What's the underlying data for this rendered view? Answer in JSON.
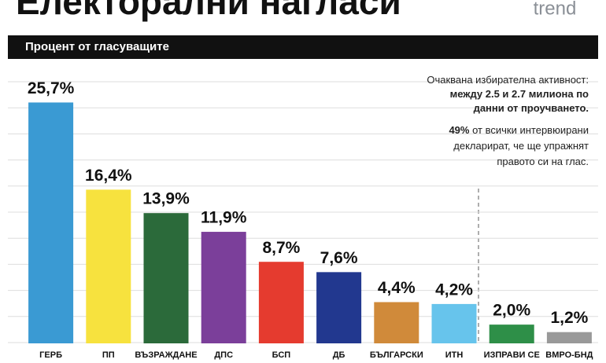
{
  "chart_data": {
    "type": "bar",
    "title": "Електорални нагласи",
    "subtitle": "Процент от гласуващите",
    "logo": "trend",
    "annotations": [
      {
        "text": "Очаквана избирателна активност:",
        "bold": false
      },
      {
        "text": "между 2.5 и 2.7 милиона по",
        "bold": true
      },
      {
        "text": "данни от проучването.",
        "bold": true
      },
      {
        "text": "49%",
        "bold": true,
        "rest": "от всички интервюирани"
      },
      {
        "text": "декларират, че ще упражнят",
        "bold": false
      },
      {
        "text": "правото си на глас.",
        "bold": false
      }
    ],
    "categories": [
      "ГЕРБ",
      "ПП",
      "ВЪЗРАЖДАНЕ",
      "ДПС",
      "БСП",
      "ДБ",
      "БЪЛГАРСКИ",
      "ИТН",
      "ИЗПРАВИ СЕ",
      "ВМРО-БНД"
    ],
    "values": [
      25.7,
      16.4,
      13.9,
      11.9,
      8.7,
      7.6,
      4.4,
      4.2,
      2.0,
      1.2
    ],
    "value_labels": [
      "25,7%",
      "16,4%",
      "13,9%",
      "11,9%",
      "8,7%",
      "7,6%",
      "4,4%",
      "4,2%",
      "2,0%",
      "1,2%"
    ],
    "colors": [
      "#3a9ad3",
      "#f7e23e",
      "#2b6a3a",
      "#7b3f9a",
      "#e53b2f",
      "#22388f",
      "#d08a3a",
      "#67c4ec",
      "#2e8f48",
      "#999999"
    ],
    "ylim": [
      0,
      28
    ],
    "grid": true
  }
}
